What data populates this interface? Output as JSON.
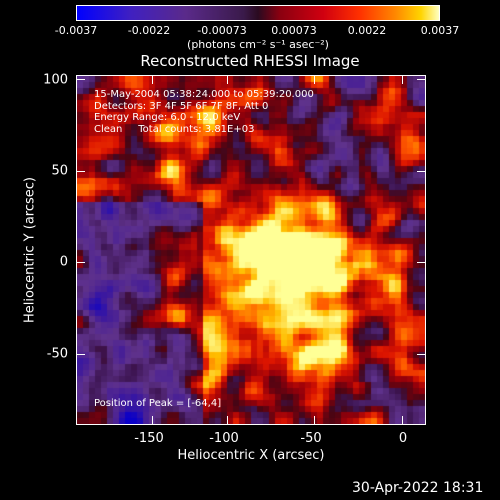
{
  "colorbar": {
    "ticks": [
      "-0.0037",
      "-0.0022",
      "-0.00073",
      "0.00073",
      "0.0022",
      "0.0037"
    ],
    "unit": "(photons cm⁻² s⁻¹ asec⁻²)"
  },
  "title": "Reconstructed RHESSI Image",
  "info": {
    "line1": "15-May-2004 05:38:24.000 to 05:39:20.000",
    "line2": "Detectors: 3F 4F 5F 6F 7F 8F, Att 0",
    "line3": "Energy Range: 6.0 - 12.0 keV",
    "line4": "Clean     Total counts: 3.81E+03"
  },
  "peak_text": "Position of Peak = [-64,4]",
  "axes": {
    "xlabel": "Heliocentric X (arcsec)",
    "ylabel": "Heliocentric Y (arcsec)",
    "xticks": [
      "-150",
      "-100",
      "-50",
      "0"
    ],
    "yticks": [
      "100",
      "50",
      "0",
      "-50"
    ]
  },
  "date_stamp": "30-Apr-2022 18:31"
}
